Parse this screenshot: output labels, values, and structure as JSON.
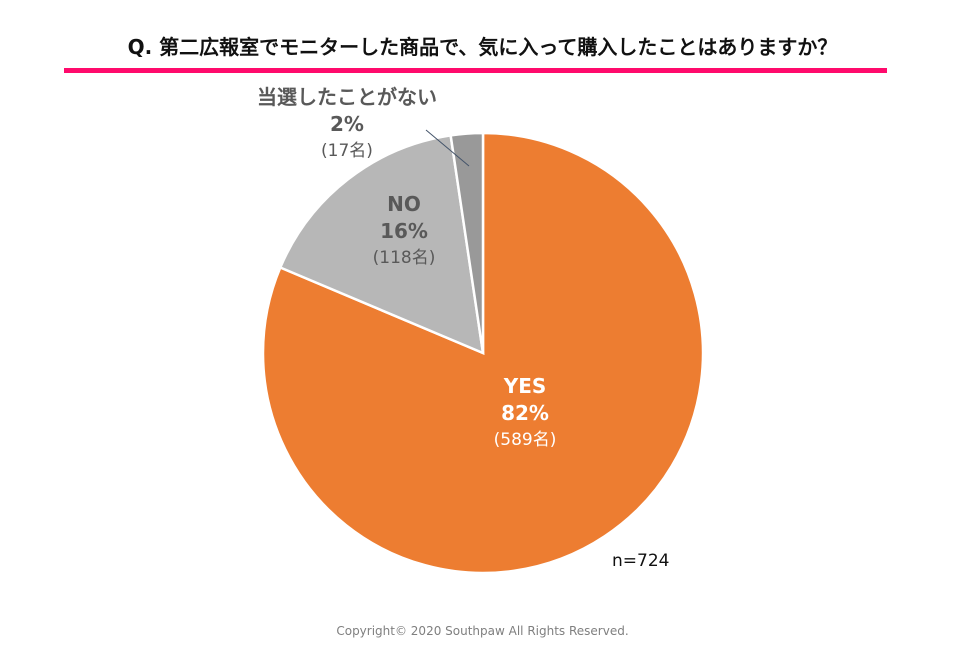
{
  "title": "Q. 第二広報室でモニターした商品で、気に入って購入したことはありますか？",
  "accent_color": "#ff0a6c",
  "chart_data": {
    "type": "pie",
    "title": "Q. 第二広報室でモニターした商品で、気に入って購入したことはありますか？",
    "start": "top, clockwise",
    "slices": [
      {
        "name": "YES",
        "percent_label": "82%",
        "count_label": "(589名)",
        "value": 589,
        "color": "#ed7d31"
      },
      {
        "name": "NO",
        "percent_label": "16%",
        "count_label": "(118名)",
        "value": 118,
        "color": "#b7b7b7"
      },
      {
        "name": "当選したことがない",
        "percent_label": "2%",
        "count_label": "(17名)",
        "value": 17,
        "color": "#999999"
      }
    ],
    "n_label": "n=724"
  },
  "footer": {
    "copyright": "Copyright© 2020 Southpaw All Rights Reserved."
  }
}
